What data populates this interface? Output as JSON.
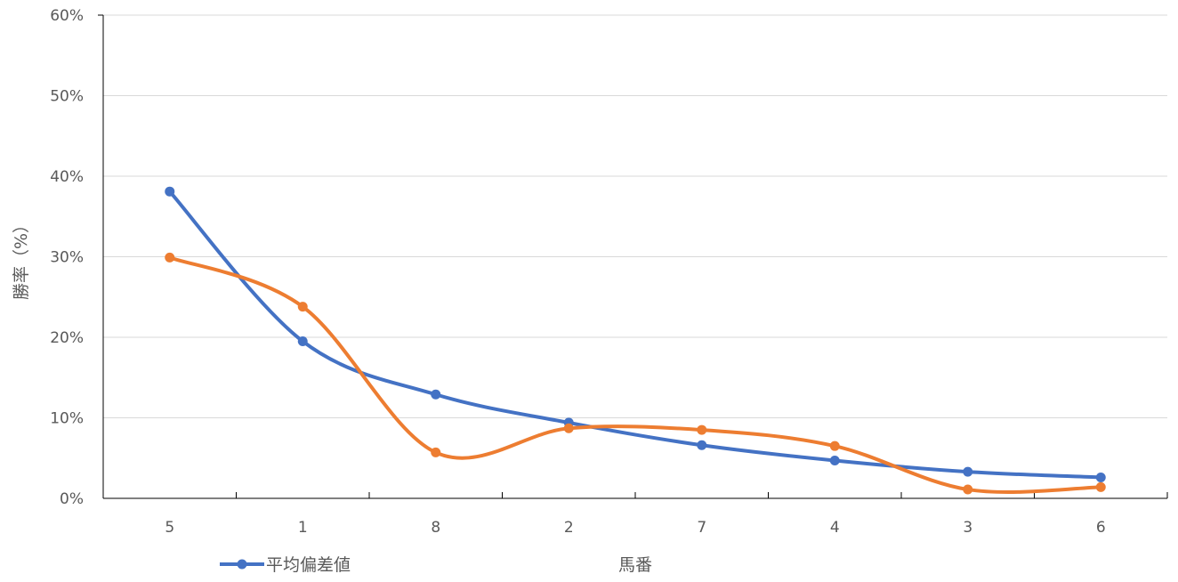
{
  "chart_data": {
    "type": "line",
    "smooth": true,
    "categories": [
      "5",
      "1",
      "8",
      "2",
      "7",
      "4",
      "3",
      "6"
    ],
    "series": [
      {
        "name": "平均偏差値",
        "color": "#4472C4",
        "values": [
          38.1,
          19.5,
          12.9,
          9.4,
          6.6,
          4.7,
          3.3,
          2.6
        ]
      },
      {
        "name": "",
        "color": "#ED7D31",
        "values": [
          29.9,
          23.8,
          5.7,
          8.7,
          8.5,
          6.5,
          1.1,
          1.4
        ]
      }
    ],
    "xlabel": "馬番",
    "ylabel": "勝率（%）",
    "ylim": [
      0,
      60
    ],
    "yticks": [
      "0%",
      "10%",
      "20%",
      "30%",
      "40%",
      "50%",
      "60%"
    ],
    "grid": true,
    "legend": "bottom-left"
  }
}
